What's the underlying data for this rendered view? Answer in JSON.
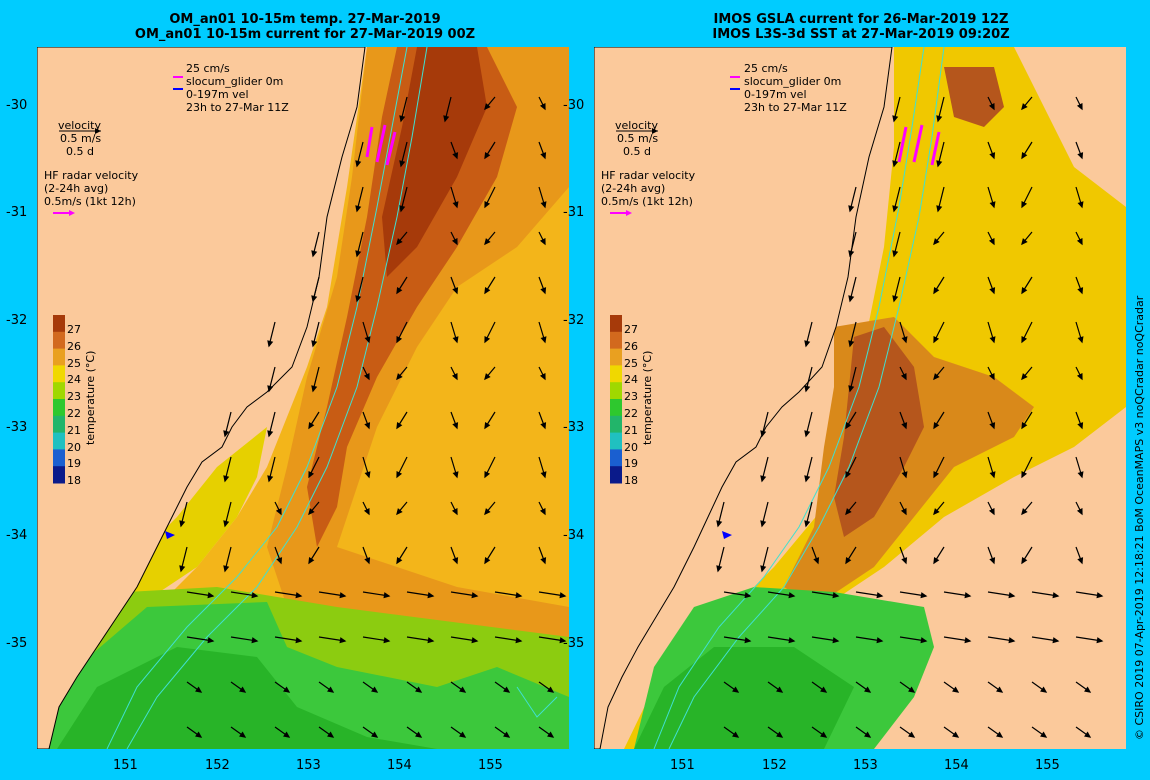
{
  "panels": [
    {
      "id": "left",
      "title_line1": "OM_an01 10-15m temp. 27-Mar-2019",
      "title_line2": "OM_an01 10-15m current for 27-Mar-2019 00Z"
    },
    {
      "id": "right",
      "title_line1": "IMOS GSLA current for 26-Mar-2019 12Z",
      "title_line2": "IMOS L3S-3d SST at 27-Mar-2019 09:20Z"
    }
  ],
  "legend": {
    "scale_25cms": "25 cm/s",
    "glider": "slocum_glider 0m",
    "vel_0_197": "0-197m vel",
    "period": "23h to 27-Mar 11Z",
    "velocity": "velocity",
    "vel_scale": "0.5 m/s",
    "vel_days": "0.5 d",
    "hf_title": "HF radar velocity",
    "hf_avg": "(2-24h avg)",
    "hf_scale": "0.5m/s (1kt 12h)"
  },
  "axes": {
    "lat_ticks": [
      "-30",
      "-31",
      "-32",
      "-33",
      "-34",
      "-35"
    ],
    "lon_ticks": [
      "151",
      "152",
      "153",
      "154",
      "155"
    ]
  },
  "colorbar": {
    "title": "temperature (°C)",
    "ticks": [
      "27",
      "26",
      "25",
      "24",
      "23",
      "22",
      "21",
      "20",
      "19",
      "18"
    ],
    "colors": [
      "#a63a0a",
      "#d2691e",
      "#e9a020",
      "#f0d800",
      "#a0d800",
      "#2ec82e",
      "#22b56a",
      "#20c0c0",
      "#1a5fd0",
      "#0a1a8a"
    ]
  },
  "copyright": "© CSIRO 2019   07-Apr-2019 12:18:21 BoM OceanMAPS v3 noQCradar noQCradar",
  "colors": {
    "background": "#00ccff",
    "land": "#fbc99b",
    "warm": "#d2691e",
    "hot": "#a63a0a",
    "mid": "#f0c000",
    "cool": "#2ec82e",
    "contour": "#40e0d0",
    "glider": "#ff00ff",
    "vel_arrow": "#0000ff"
  }
}
